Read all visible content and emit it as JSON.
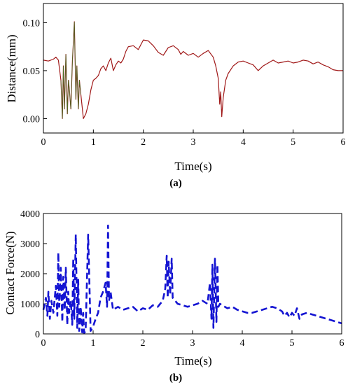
{
  "chart_data": [
    {
      "type": "line",
      "caption": "(a)",
      "xlabel": "Time(s)",
      "ylabel": "Distance(mm)",
      "xlim": [
        0,
        6
      ],
      "ylim": [
        -0.015,
        0.12
      ],
      "xticks": [
        0,
        1,
        2,
        3,
        4,
        5,
        6
      ],
      "yticks": [
        0.0,
        0.05,
        0.1
      ],
      "ytick_labels": [
        "0.00",
        "0.05",
        "0.10"
      ],
      "line_color": "#a01818",
      "accent_color": "#2a8a2a",
      "series": [
        {
          "x": [
            0.0,
            0.1,
            0.2,
            0.25,
            0.3,
            0.35,
            0.38,
            0.4,
            0.42,
            0.45,
            0.48,
            0.5,
            0.52,
            0.55,
            0.58,
            0.6,
            0.62,
            0.65,
            0.67,
            0.7,
            0.72,
            0.75,
            0.8,
            0.85,
            0.9,
            0.95,
            1.0,
            1.05,
            1.1,
            1.15,
            1.2,
            1.25,
            1.3,
            1.35,
            1.4,
            1.45,
            1.5,
            1.55,
            1.6,
            1.65,
            1.7,
            1.8,
            1.9,
            2.0,
            2.1,
            2.2,
            2.3,
            2.4,
            2.5,
            2.6,
            2.7,
            2.75,
            2.8,
            2.9,
            3.0,
            3.1,
            3.2,
            3.3,
            3.4,
            3.45,
            3.5,
            3.53,
            3.55,
            3.57,
            3.6,
            3.65,
            3.7,
            3.8,
            3.9,
            4.0,
            4.1,
            4.2,
            4.3,
            4.4,
            4.5,
            4.6,
            4.7,
            4.8,
            4.9,
            5.0,
            5.1,
            5.2,
            5.3,
            5.4,
            5.5,
            5.6,
            5.7,
            5.8,
            5.9,
            6.0
          ],
          "y": [
            0.061,
            0.06,
            0.062,
            0.064,
            0.061,
            0.04,
            0.0,
            0.055,
            0.01,
            0.067,
            0.005,
            0.04,
            0.03,
            0.01,
            0.06,
            0.08,
            0.101,
            0.02,
            0.055,
            0.01,
            0.04,
            0.025,
            0.0,
            0.005,
            0.015,
            0.03,
            0.04,
            0.042,
            0.045,
            0.052,
            0.055,
            0.05,
            0.058,
            0.063,
            0.05,
            0.056,
            0.06,
            0.058,
            0.062,
            0.07,
            0.075,
            0.076,
            0.072,
            0.082,
            0.081,
            0.076,
            0.069,
            0.066,
            0.074,
            0.076,
            0.072,
            0.067,
            0.07,
            0.066,
            0.068,
            0.064,
            0.068,
            0.071,
            0.064,
            0.055,
            0.042,
            0.015,
            0.028,
            0.002,
            0.022,
            0.04,
            0.047,
            0.055,
            0.059,
            0.06,
            0.058,
            0.056,
            0.05,
            0.055,
            0.058,
            0.061,
            0.058,
            0.059,
            0.06,
            0.058,
            0.059,
            0.061,
            0.06,
            0.057,
            0.059,
            0.056,
            0.054,
            0.051,
            0.05,
            0.05
          ]
        }
      ]
    },
    {
      "type": "line",
      "caption": "(b)",
      "xlabel": "Time(s)",
      "ylabel": "Contact Force(N)",
      "xlim": [
        0,
        6
      ],
      "ylim": [
        0,
        4000
      ],
      "xticks": [
        0,
        1,
        2,
        3,
        4,
        5,
        6
      ],
      "yticks": [
        0,
        1000,
        2000,
        3000,
        4000
      ],
      "line_color": "#1414d2",
      "line_style": "dashed",
      "series": [
        {
          "x": [
            0.0,
            0.05,
            0.08,
            0.1,
            0.13,
            0.16,
            0.2,
            0.25,
            0.28,
            0.3,
            0.32,
            0.35,
            0.38,
            0.4,
            0.43,
            0.45,
            0.48,
            0.5,
            0.52,
            0.55,
            0.58,
            0.6,
            0.62,
            0.65,
            0.68,
            0.7,
            0.72,
            0.75,
            0.78,
            0.8,
            0.82,
            0.85,
            0.9,
            0.95,
            1.0,
            1.05,
            1.1,
            1.15,
            1.2,
            1.25,
            1.28,
            1.3,
            1.32,
            1.35,
            1.4,
            1.5,
            1.6,
            1.7,
            1.8,
            1.9,
            2.0,
            2.1,
            2.2,
            2.3,
            2.35,
            2.4,
            2.45,
            2.48,
            2.5,
            2.52,
            2.55,
            2.58,
            2.6,
            2.65,
            2.7,
            2.8,
            2.9,
            3.0,
            3.1,
            3.2,
            3.3,
            3.35,
            3.38,
            3.4,
            3.42,
            3.45,
            3.48,
            3.5,
            3.52,
            3.55,
            3.6,
            3.7,
            3.8,
            3.9,
            4.0,
            4.1,
            4.2,
            4.3,
            4.4,
            4.5,
            4.6,
            4.7,
            4.8,
            4.85,
            4.9,
            4.95,
            5.0,
            5.05,
            5.1,
            5.15,
            5.2,
            5.3,
            5.4,
            5.5,
            5.6,
            5.7,
            5.8,
            5.9,
            6.0
          ],
          "y": [
            800,
            1200,
            600,
            1400,
            500,
            1100,
            700,
            1600,
            600,
            2700,
            900,
            2200,
            400,
            1900,
            800,
            2200,
            300,
            1400,
            700,
            1100,
            300,
            2500,
            500,
            3300,
            200,
            1800,
            100,
            900,
            50,
            700,
            30,
            100,
            3300,
            100,
            250,
            500,
            700,
            1200,
            1400,
            1700,
            900,
            3600,
            1100,
            1400,
            800,
            900,
            800,
            850,
            900,
            750,
            850,
            800,
            950,
            900,
            1000,
            1100,
            1500,
            2600,
            1200,
            2400,
            1300,
            2500,
            1200,
            1100,
            1000,
            950,
            900,
            950,
            1000,
            1100,
            1000,
            1700,
            500,
            2300,
            200,
            2500,
            400,
            2300,
            900,
            1000,
            950,
            850,
            900,
            800,
            750,
            700,
            700,
            750,
            800,
            850,
            900,
            850,
            750,
            600,
            700,
            550,
            700,
            600,
            850,
            500,
            650,
            700,
            650,
            600,
            550,
            500,
            450,
            400,
            350
          ]
        }
      ]
    }
  ]
}
